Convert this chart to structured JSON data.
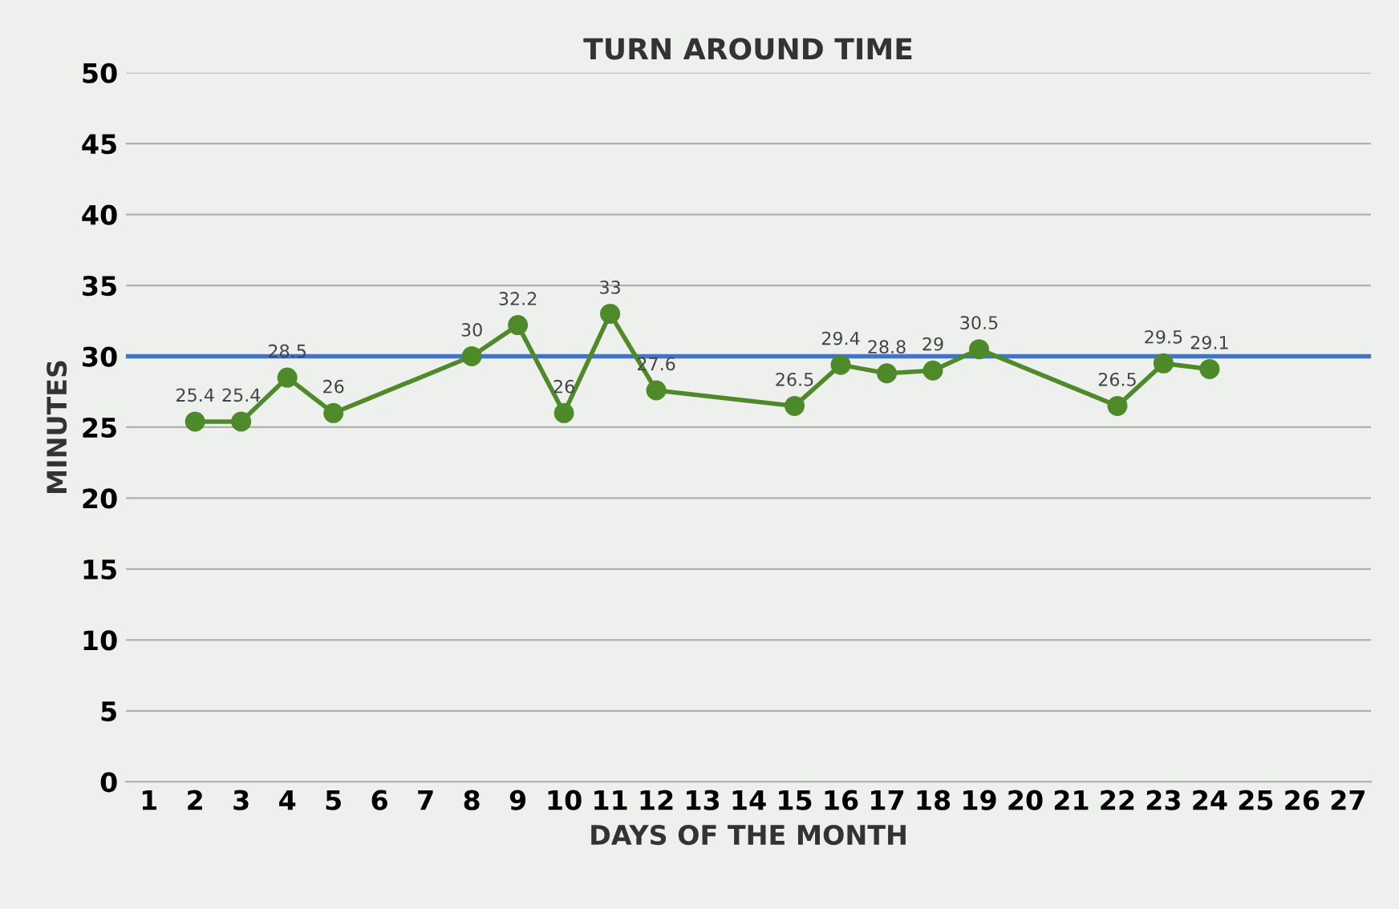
{
  "chart_data": {
    "type": "line",
    "title": "TURN AROUND TIME",
    "xlabel": "DAYS OF THE MONTH",
    "ylabel": "MINUTES",
    "x": [
      2,
      3,
      4,
      5,
      8,
      9,
      10,
      11,
      12,
      15,
      16,
      17,
      18,
      19,
      22,
      23,
      24
    ],
    "series": [
      {
        "color": "#4e8a2a",
        "values": [
          25.4,
          25.4,
          28.5,
          26,
          30,
          32.2,
          26,
          33,
          27.6,
          26.5,
          29.4,
          28.8,
          29,
          30.5,
          26.5,
          29.5,
          29.1
        ]
      }
    ],
    "xlim": [
      0.5,
      27.5
    ],
    "xticks": [
      1,
      2,
      3,
      4,
      5,
      6,
      7,
      8,
      9,
      10,
      11,
      12,
      13,
      14,
      15,
      16,
      17,
      18,
      19,
      20,
      21,
      22,
      23,
      24,
      25,
      26,
      27
    ],
    "ylim": [
      0,
      50
    ],
    "yticks": [
      0,
      5,
      10,
      15,
      20,
      25,
      30,
      35,
      40,
      45,
      50
    ],
    "ref_lines": [
      {
        "axis": "y",
        "value": 30,
        "color": "#4472c4"
      }
    ],
    "grid": "y",
    "marker": "circle",
    "line_style": "solid",
    "data_labels": true
  }
}
